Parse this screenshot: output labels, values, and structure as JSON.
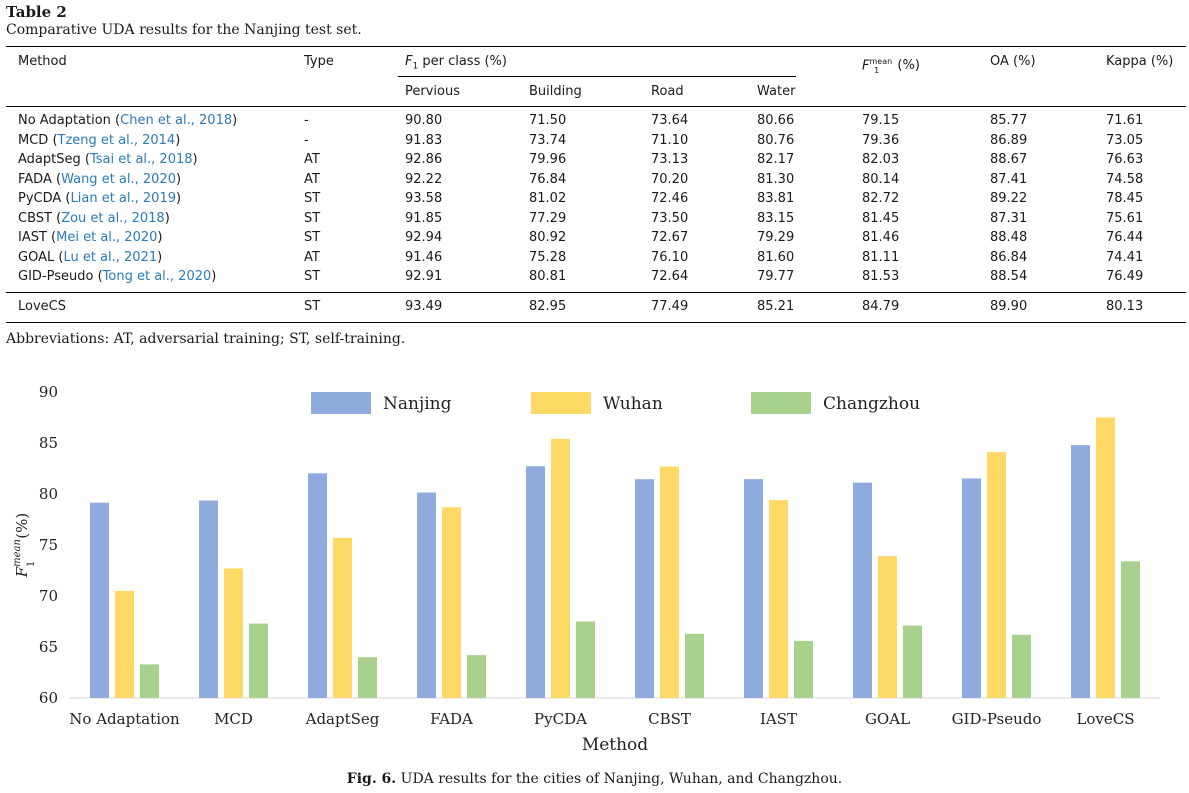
{
  "table": {
    "label": "Table 2",
    "caption": "Comparative UDA results for the Nanjing test set.",
    "headers": {
      "method": "Method",
      "type": "Type",
      "f1_group": "F",
      "f1_group_sub": "1",
      "f1_group_rest": " per class (%)",
      "f1mean": "F",
      "f1mean_sup": "mean",
      "f1mean_sub": "1",
      "f1mean_rest": " (%)",
      "oa": "OA (%)",
      "kappa": "Kappa (%)",
      "classes": [
        "Pervious",
        "Building",
        "Road",
        "Water"
      ]
    },
    "rows": [
      {
        "name": "No Adaptation",
        "cite": "Chen et al., 2018",
        "type": "-",
        "vals": [
          "90.80",
          "71.50",
          "73.64",
          "80.66",
          "79.15",
          "85.77",
          "71.61"
        ]
      },
      {
        "name": "MCD",
        "cite": "Tzeng et al., 2014",
        "type": "-",
        "vals": [
          "91.83",
          "73.74",
          "71.10",
          "80.76",
          "79.36",
          "86.89",
          "73.05"
        ]
      },
      {
        "name": "AdaptSeg",
        "cite": "Tsai et al., 2018",
        "type": "AT",
        "vals": [
          "92.86",
          "79.96",
          "73.13",
          "82.17",
          "82.03",
          "88.67",
          "76.63"
        ]
      },
      {
        "name": "FADA",
        "cite": "Wang et al., 2020",
        "type": "AT",
        "vals": [
          "92.22",
          "76.84",
          "70.20",
          "81.30",
          "80.14",
          "87.41",
          "74.58"
        ]
      },
      {
        "name": "PyCDA",
        "cite": "Lian et al., 2019",
        "type": "ST",
        "vals": [
          "93.58",
          "81.02",
          "72.46",
          "83.81",
          "82.72",
          "89.22",
          "78.45"
        ]
      },
      {
        "name": "CBST",
        "cite": "Zou et al., 2018",
        "type": "ST",
        "vals": [
          "91.85",
          "77.29",
          "73.50",
          "83.15",
          "81.45",
          "87.31",
          "75.61"
        ]
      },
      {
        "name": "IAST",
        "cite": "Mei et al., 2020",
        "type": "ST",
        "vals": [
          "92.94",
          "80.92",
          "72.67",
          "79.29",
          "81.46",
          "88.48",
          "76.44"
        ]
      },
      {
        "name": "GOAL",
        "cite": "Lu et al., 2021",
        "type": "AT",
        "vals": [
          "91.46",
          "75.28",
          "76.10",
          "81.60",
          "81.11",
          "86.84",
          "74.41"
        ]
      },
      {
        "name": "GID-Pseudo",
        "cite": "Tong et al., 2020",
        "type": "ST",
        "vals": [
          "92.91",
          "80.81",
          "72.64",
          "79.77",
          "81.53",
          "88.54",
          "76.49"
        ]
      },
      {
        "name": "LoveCS",
        "cite": "",
        "type": "ST",
        "vals": [
          "93.49",
          "82.95",
          "77.49",
          "85.21",
          "84.79",
          "89.90",
          "80.13"
        ]
      }
    ],
    "abbreviations": "Abbreviations: AT, adversarial training; ST, self-training."
  },
  "figure": {
    "label": "Fig. 6.",
    "caption": "UDA results for the cities of Nanjing, Wuhan, and Changzhou."
  },
  "chart_data": {
    "type": "bar",
    "categories": [
      "No Adaptation",
      "MCD",
      "AdaptSeg",
      "FADA",
      "PyCDA",
      "CBST",
      "IAST",
      "GOAL",
      "GID-Pseudo",
      "LoveCS"
    ],
    "series": [
      {
        "name": "Nanjing",
        "color": "#8faadc",
        "values": [
          79.15,
          79.36,
          82.03,
          80.14,
          82.72,
          81.45,
          81.46,
          81.11,
          81.53,
          84.79
        ]
      },
      {
        "name": "Wuhan",
        "color": "#ffd966",
        "values": [
          70.5,
          72.7,
          75.7,
          78.7,
          85.4,
          82.7,
          79.4,
          73.9,
          84.1,
          87.5
        ]
      },
      {
        "name": "Changzhou",
        "color": "#a9d18e",
        "values": [
          63.3,
          67.3,
          64.0,
          64.2,
          67.5,
          66.3,
          65.6,
          67.1,
          66.2,
          73.4
        ]
      }
    ],
    "xlabel": "Method",
    "ylabel": "F",
    "ylabel_sup": "mean",
    "ylabel_sub": "1",
    "ylabel_rest": "(%)",
    "ylim": [
      60,
      90
    ],
    "yticks": [
      "60",
      "65",
      "70",
      "75",
      "80",
      "85",
      "90"
    ],
    "grid": false,
    "legend": "top"
  }
}
